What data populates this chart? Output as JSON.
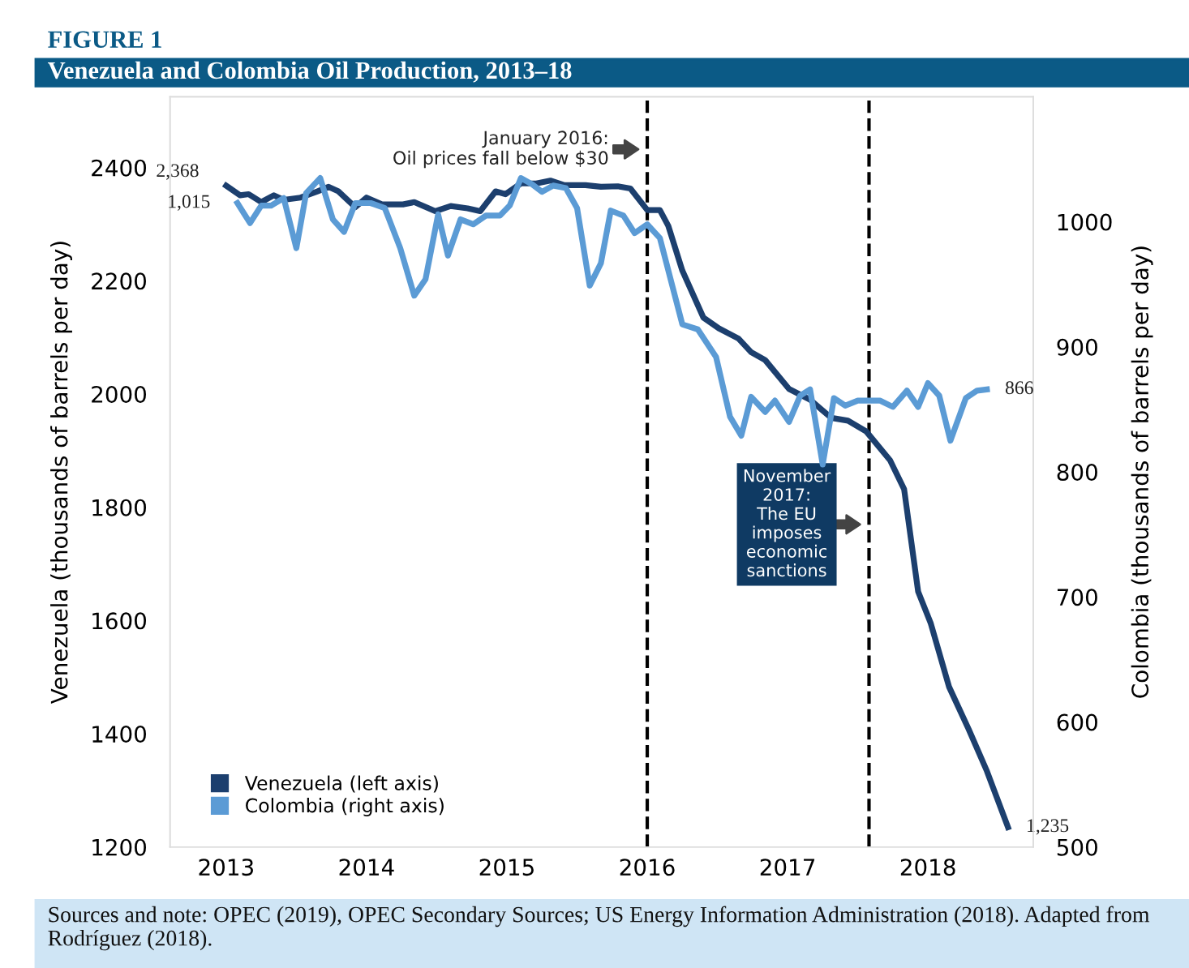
{
  "chart_data": {
    "type": "line",
    "title": "FIGURE 1",
    "subtitle": "Venezuela and Colombia Oil Production, 2013–18",
    "ylabel": "Venezuela (thousands of barrels per day)",
    "y2label": "Colombia (thousands of barrels per day)",
    "xlim": [
      2012.6,
      2018.75
    ],
    "xticks": [
      2013,
      2014,
      2015,
      2016,
      2017,
      2018
    ],
    "ylim": [
      1200,
      2525
    ],
    "yticks": [
      1200,
      1400,
      1600,
      1800,
      2000,
      2200,
      2400
    ],
    "y2lim": [
      500,
      1100
    ],
    "y2ticks": [
      500,
      600,
      700,
      800,
      900,
      1000
    ],
    "grid": false,
    "legend": "bottom left",
    "marker": "none",
    "line_style": "solid",
    "series": [
      {
        "name": "Venezuela (left axis)",
        "color": "#1c3f6e",
        "x": [
          2013.0,
          2013.1,
          2013.16,
          2013.25,
          2013.34,
          2013.41,
          2013.53,
          2013.65,
          2013.73,
          2013.8,
          2013.92,
          2014.0,
          2014.11,
          2014.26,
          2014.34,
          2014.49,
          2014.6,
          2014.72,
          2014.81,
          2014.92,
          2014.99,
          2015.1,
          2015.21,
          2015.31,
          2015.41,
          2015.56,
          2015.67,
          2015.79,
          2015.88,
          2016.0,
          2016.09,
          2016.15,
          2016.25,
          2016.4,
          2016.51,
          2016.65,
          2016.74,
          2016.84,
          2017.01,
          2017.16,
          2017.31,
          2017.43,
          2017.56,
          2017.73,
          2017.83,
          2017.93,
          2018.02,
          2018.15,
          2018.29,
          2018.42,
          2018.57
        ],
        "values": [
          2368,
          2351,
          2353,
          2339,
          2351,
          2343,
          2347,
          2358,
          2366,
          2358,
          2330,
          2347,
          2335,
          2335,
          2339,
          2323,
          2332,
          2328,
          2323,
          2358,
          2353,
          2372,
          2372,
          2377,
          2369,
          2369,
          2366,
          2367,
          2363,
          2325,
          2325,
          2297,
          2218,
          2135,
          2116,
          2098,
          2074,
          2060,
          2009,
          1990,
          1958,
          1953,
          1934,
          1883,
          1832,
          1651,
          1595,
          1483,
          1408,
          1334,
          1235
        ],
        "value_labels": [
          "2,368",
          null,
          null,
          null,
          null,
          null,
          null,
          null,
          null,
          null,
          null,
          null,
          null,
          null,
          null,
          null,
          null,
          null,
          null,
          null,
          null,
          null,
          null,
          null,
          null,
          null,
          null,
          null,
          null,
          null,
          null,
          null,
          null,
          null,
          null,
          null,
          null,
          null,
          null,
          null,
          null,
          null,
          null,
          null,
          null,
          null,
          null,
          null,
          null,
          null,
          "1,235"
        ]
      },
      {
        "name": "Colombia (right axis)",
        "color": "#5b9bd5",
        "axis": "y2",
        "x": [
          2013.08,
          2013.17,
          2013.25,
          2013.32,
          2013.41,
          2013.5,
          2013.57,
          2013.67,
          2013.76,
          2013.84,
          2013.92,
          2014.03,
          2014.13,
          2014.24,
          2014.34,
          2014.42,
          2014.51,
          2014.58,
          2014.67,
          2014.76,
          2014.85,
          2014.95,
          2015.02,
          2015.1,
          2015.18,
          2015.25,
          2015.33,
          2015.42,
          2015.5,
          2015.59,
          2015.67,
          2015.74,
          2015.83,
          2015.91,
          2016.0,
          2016.09,
          2016.25,
          2016.36,
          2016.49,
          2016.59,
          2016.67,
          2016.74,
          2016.84,
          2016.91,
          2017.01,
          2017.09,
          2017.16,
          2017.25,
          2017.33,
          2017.41,
          2017.5,
          2017.66,
          2017.75,
          2017.85,
          2017.93,
          2018.0,
          2018.08,
          2018.16,
          2018.27,
          2018.35,
          2018.42
        ],
        "values": [
          1015,
          999,
          1013,
          1013,
          1019,
          979,
          1023,
          1035,
          1002,
          992,
          1015,
          1015,
          1011,
          979,
          941,
          954,
          1006,
          973,
          1002,
          998,
          1005,
          1005,
          1013,
          1035,
          1030,
          1024,
          1029,
          1027,
          1011,
          949,
          967,
          1009,
          1005,
          991,
          998,
          987,
          918,
          914,
          892,
          844,
          829,
          860,
          848,
          857,
          840,
          861,
          866,
          806,
          859,
          853,
          857,
          857,
          852,
          865,
          852,
          871,
          861,
          825,
          859,
          865,
          866
        ],
        "value_labels": [
          "1,015",
          null,
          null,
          null,
          null,
          null,
          null,
          null,
          null,
          null,
          null,
          null,
          null,
          null,
          null,
          null,
          null,
          null,
          null,
          null,
          null,
          null,
          null,
          null,
          null,
          null,
          null,
          null,
          null,
          null,
          null,
          null,
          null,
          null,
          null,
          null,
          null,
          null,
          null,
          null,
          null,
          null,
          null,
          null,
          null,
          null,
          null,
          null,
          null,
          null,
          null,
          null,
          null,
          null,
          null,
          null,
          null,
          null,
          null,
          null,
          "866"
        ]
      }
    ],
    "ref_lines": [
      {
        "axis": "x",
        "value": 2016.0,
        "label": "January 2016:\nOil prices fall below $30",
        "color": "#000000",
        "line_style": "dashed"
      },
      {
        "axis": "x",
        "value": 2017.58,
        "label": "November\n2017:\nThe EU\nimposes\neconomic\nsanctions",
        "color": "#000000",
        "line_style": "dashed"
      }
    ],
    "annotations": [
      "Sources and note: OPEC (2019), OPEC Secondary Sources; US Energy Information Administration (2018). Adapted from Rodríguez (2018)."
    ]
  }
}
